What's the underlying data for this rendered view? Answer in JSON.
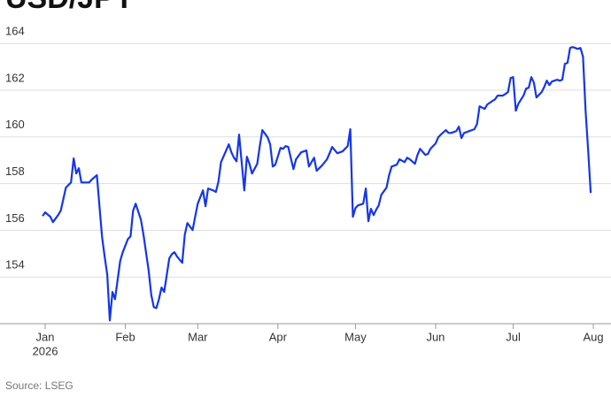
{
  "chart_data": {
    "type": "line",
    "title": "USD/JPY",
    "source": "Source: LSEG",
    "x": [
      -1,
      0,
      2,
      3,
      5,
      6,
      8,
      10,
      11,
      12,
      13,
      14,
      17,
      18,
      20,
      22,
      23,
      24,
      25,
      26,
      27,
      29,
      30,
      32,
      33,
      34,
      35,
      37,
      38,
      40,
      41,
      42,
      43,
      44,
      45,
      46,
      48,
      49,
      50,
      51,
      53,
      54,
      55,
      57,
      58,
      59,
      61,
      62,
      63,
      65,
      66,
      67,
      68,
      71,
      72,
      73,
      74,
      75,
      77,
      78,
      79,
      80,
      82,
      83,
      84,
      86,
      87,
      88,
      89,
      91,
      92,
      93,
      94,
      96,
      97,
      99,
      100,
      101,
      102,
      104,
      105,
      106,
      107,
      109,
      110,
      111,
      113,
      114,
      115,
      117,
      118,
      119,
      120,
      121,
      123,
      124,
      125,
      126,
      127,
      128,
      129,
      130,
      132,
      133,
      134,
      135,
      136,
      137,
      139,
      140,
      141,
      143,
      144,
      145,
      147,
      148,
      149,
      151,
      152,
      153,
      155,
      156,
      157,
      159,
      160,
      161,
      162,
      163,
      164,
      166,
      167,
      168,
      170,
      171,
      173,
      174,
      175,
      177,
      178,
      179,
      180,
      181,
      182,
      183,
      185,
      186,
      187,
      188,
      189,
      190,
      192,
      193,
      194,
      195,
      196,
      198,
      199,
      200,
      201,
      202,
      203,
      204,
      205,
      206,
      207,
      208,
      209,
      210,
      211
    ],
    "series": [
      {
        "name": "USD/JPY",
        "color": "#1536e8",
        "values": [
          156.61,
          156.77,
          156.58,
          156.35,
          156.65,
          156.84,
          157.83,
          158.05,
          159.08,
          158.43,
          158.66,
          158.05,
          158.05,
          158.17,
          158.36,
          155.7,
          154.87,
          154.11,
          152.14,
          153.36,
          153.05,
          154.68,
          155.06,
          155.63,
          155.74,
          156.84,
          157.14,
          156.46,
          155.82,
          154.3,
          153.24,
          152.71,
          152.67,
          153.05,
          153.55,
          153.36,
          154.8,
          154.98,
          155.06,
          154.87,
          154.61,
          155.82,
          156.31,
          156.01,
          156.58,
          157.14,
          157.71,
          157.03,
          157.79,
          157.71,
          157.64,
          158.09,
          158.92,
          159.68,
          159.34,
          159.11,
          158.96,
          160.1,
          157.71,
          159.15,
          158.85,
          158.43,
          158.85,
          159.61,
          160.29,
          159.98,
          159.68,
          158.73,
          158.81,
          159.53,
          159.49,
          159.61,
          159.57,
          158.62,
          159.04,
          159.34,
          159.38,
          159.42,
          158.73,
          159.11,
          158.55,
          158.66,
          158.77,
          159.04,
          159.3,
          159.57,
          159.3,
          159.34,
          159.38,
          159.61,
          160.33,
          156.58,
          156.95,
          157.07,
          157.14,
          157.79,
          156.39,
          156.92,
          156.65,
          156.88,
          157.07,
          157.52,
          157.83,
          158.36,
          158.73,
          158.77,
          158.81,
          159.04,
          158.92,
          159.11,
          159.04,
          158.85,
          159.23,
          159.49,
          159.23,
          159.27,
          159.49,
          159.72,
          159.98,
          160.1,
          160.29,
          160.17,
          160.17,
          160.25,
          160.44,
          159.95,
          160.17,
          160.21,
          160.25,
          160.33,
          160.55,
          161.31,
          161.2,
          161.39,
          161.54,
          161.61,
          161.77,
          161.77,
          161.84,
          161.92,
          162.52,
          162.56,
          161.12,
          161.42,
          161.77,
          162.07,
          162.11,
          162.56,
          162.33,
          161.69,
          161.92,
          162.14,
          162.41,
          162.22,
          162.37,
          162.45,
          162.41,
          162.45,
          163.13,
          163.17,
          163.81,
          163.85,
          163.81,
          163.77,
          163.81,
          163.43,
          161.12,
          159.42,
          157.6
        ]
      }
    ],
    "xlim": [
      -2,
      214
    ],
    "xticks": [
      {
        "value": 0,
        "label": "Jan",
        "sublabel": "2026"
      },
      {
        "value": 31,
        "label": "Feb"
      },
      {
        "value": 59,
        "label": "Mar"
      },
      {
        "value": 90,
        "label": "Apr"
      },
      {
        "value": 120,
        "label": "May"
      },
      {
        "value": 151,
        "label": "Jun"
      },
      {
        "value": 181,
        "label": "Jul"
      },
      {
        "value": 212,
        "label": "Aug"
      }
    ],
    "ylim": [
      152,
      164.5
    ],
    "yticks": [
      154,
      156,
      158,
      160,
      162,
      164
    ],
    "grid": true
  }
}
